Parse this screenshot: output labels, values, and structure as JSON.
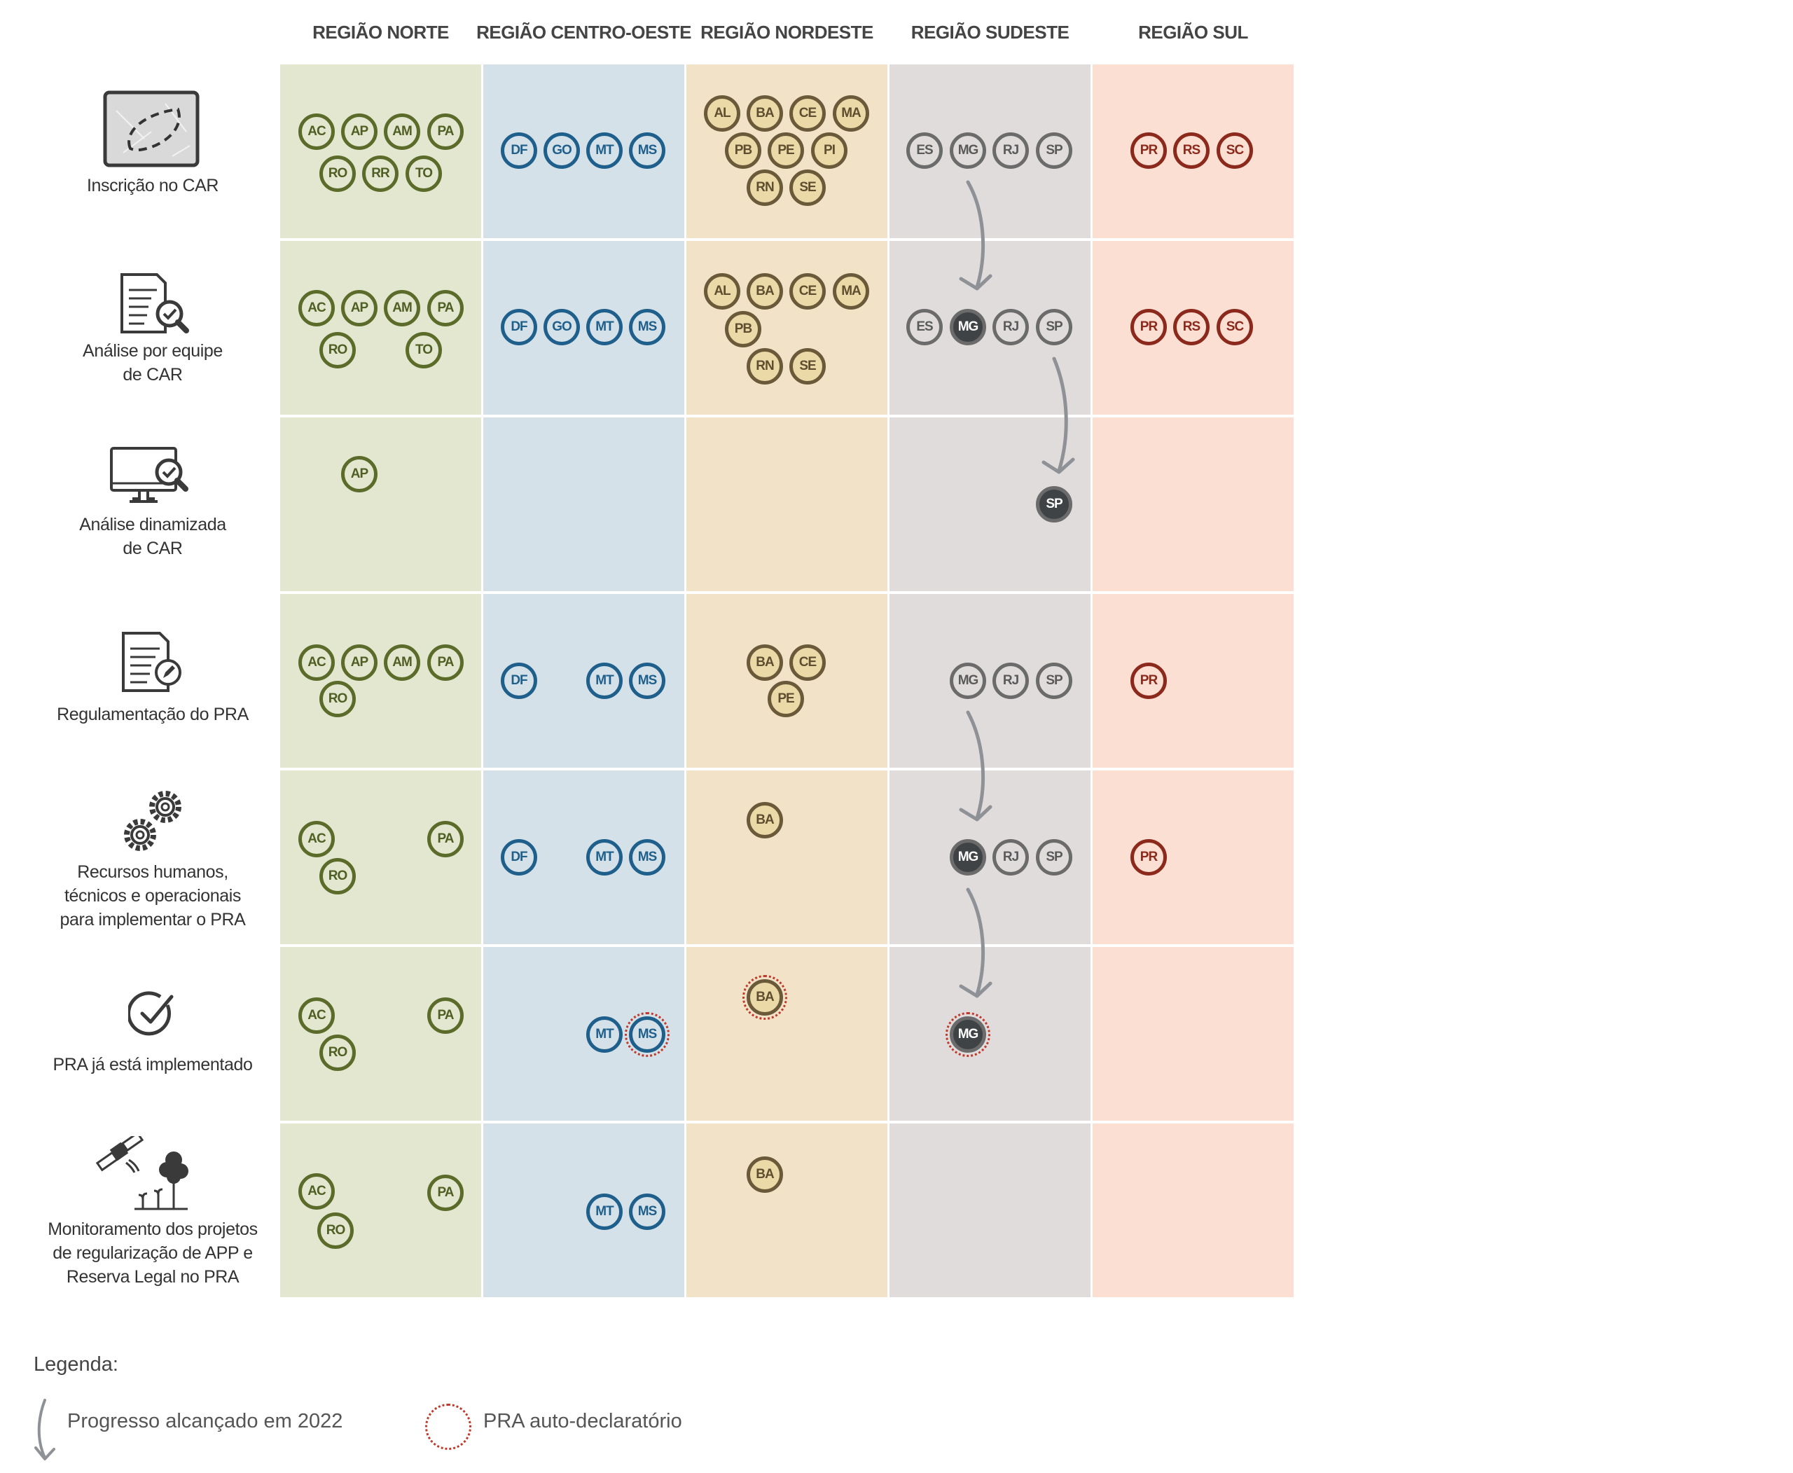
{
  "columns": [
    {
      "title": "REGIÃO NORTE",
      "fill": "#e4e7cf",
      "stroke": "#5a6b2a",
      "text": "#4f5f24",
      "badge_fill": "#e4e7cf"
    },
    {
      "title": "REGIÃO CENTRO-OESTE",
      "fill": "#d5e1e9",
      "stroke": "#1f5f8b",
      "text": "#1f5f8b",
      "badge_fill": "#d5e1e9"
    },
    {
      "title": "REGIÃO NORDESTE",
      "fill": "#f2e3c8",
      "stroke": "#6b5a3a",
      "text": "#5e4e2f",
      "badge_fill": "#ecd9a8"
    },
    {
      "title": "REGIÃO SUDESTE",
      "fill": "#e0dcdc",
      "stroke": "#6b6b6b",
      "text": "#5a5a5a",
      "badge_fill": "#e0dcdc",
      "dark_fill": "#404346"
    },
    {
      "title": "REGIÃO SUL",
      "fill": "#fbdfd2",
      "stroke": "#8b2a1c",
      "text": "#8b2a1c",
      "badge_fill": "#fbdfd2"
    }
  ],
  "rows": [
    {
      "label": "Inscrição no CAR",
      "icon": "map-outline-icon"
    },
    {
      "label": "Análise por equipe\nde CAR",
      "icon": "document-check-icon"
    },
    {
      "label": "Análise dinamizada\nde CAR",
      "icon": "monitor-check-icon"
    },
    {
      "label": "Regulamentação do PRA",
      "icon": "document-pencil-icon"
    },
    {
      "label": "Recursos humanos,\ntécnicos e operacionais\npara implementar o PRA",
      "icon": "gears-icon"
    },
    {
      "label": "PRA já está implementado",
      "icon": "checkmark-circle-icon"
    },
    {
      "label": "Monitoramento dos projetos\nde regularização de APP e\nReserva Legal no PRA",
      "icon": "satellite-tree-icon"
    }
  ],
  "states": [
    {
      "row": 0,
      "col": 0,
      "items": [
        "AC",
        "AP",
        "AM",
        "PA",
        "RO",
        "RR",
        "TO"
      ]
    },
    {
      "row": 0,
      "col": 1,
      "items": [
        "DF",
        "GO",
        "MT",
        "MS"
      ]
    },
    {
      "row": 0,
      "col": 2,
      "items": [
        "AL",
        "BA",
        "CE",
        "MA",
        "PB",
        "PE",
        "PI",
        "RN",
        "SE"
      ]
    },
    {
      "row": 0,
      "col": 3,
      "items": [
        "ES",
        "MG",
        "RJ",
        "SP"
      ]
    },
    {
      "row": 0,
      "col": 4,
      "items": [
        "PR",
        "RS",
        "SC"
      ]
    },
    {
      "row": 1,
      "col": 0,
      "items": [
        "AC",
        "AP",
        "AM",
        "PA",
        "RO",
        "TO"
      ]
    },
    {
      "row": 1,
      "col": 1,
      "items": [
        "DF",
        "GO",
        "MT",
        "MS"
      ]
    },
    {
      "row": 1,
      "col": 2,
      "items": [
        "AL",
        "BA",
        "CE",
        "MA",
        "PB",
        "RN",
        "SE"
      ]
    },
    {
      "row": 1,
      "col": 3,
      "items": [
        "ES",
        "MG",
        "RJ",
        "SP"
      ],
      "progress": [
        "MG"
      ]
    },
    {
      "row": 1,
      "col": 4,
      "items": [
        "PR",
        "RS",
        "SC"
      ]
    },
    {
      "row": 2,
      "col": 0,
      "items": [
        "AP"
      ]
    },
    {
      "row": 2,
      "col": 3,
      "items": [
        "SP"
      ],
      "progress": [
        "SP"
      ]
    },
    {
      "row": 3,
      "col": 0,
      "items": [
        "AC",
        "AP",
        "AM",
        "PA",
        "RO"
      ]
    },
    {
      "row": 3,
      "col": 1,
      "items": [
        "DF",
        "MT",
        "MS"
      ]
    },
    {
      "row": 3,
      "col": 2,
      "items": [
        "BA",
        "CE",
        "PE"
      ]
    },
    {
      "row": 3,
      "col": 3,
      "items": [
        "MG",
        "RJ",
        "SP"
      ]
    },
    {
      "row": 3,
      "col": 4,
      "items": [
        "PR"
      ]
    },
    {
      "row": 4,
      "col": 0,
      "items": [
        "AC",
        "PA",
        "RO"
      ]
    },
    {
      "row": 4,
      "col": 1,
      "items": [
        "DF",
        "MT",
        "MS"
      ]
    },
    {
      "row": 4,
      "col": 2,
      "items": [
        "BA"
      ]
    },
    {
      "row": 4,
      "col": 3,
      "items": [
        "MG",
        "RJ",
        "SP"
      ],
      "progress": [
        "MG"
      ]
    },
    {
      "row": 4,
      "col": 4,
      "items": [
        "PR"
      ]
    },
    {
      "row": 5,
      "col": 0,
      "items": [
        "AC",
        "PA",
        "RO"
      ]
    },
    {
      "row": 5,
      "col": 1,
      "items": [
        "MT",
        "MS"
      ],
      "self_declared": [
        "MS"
      ]
    },
    {
      "row": 5,
      "col": 2,
      "items": [
        "BA"
      ],
      "self_declared": [
        "BA"
      ]
    },
    {
      "row": 5,
      "col": 3,
      "items": [
        "MG"
      ],
      "progress": [
        "MG"
      ],
      "self_declared": [
        "MG"
      ]
    },
    {
      "row": 6,
      "col": 0,
      "items": [
        "AC",
        "PA",
        "RO"
      ]
    },
    {
      "row": 6,
      "col": 1,
      "items": [
        "MT",
        "MS"
      ]
    },
    {
      "row": 6,
      "col": 2,
      "items": [
        "BA"
      ]
    }
  ],
  "legend": {
    "title": "Legenda:",
    "progress_label": "Progresso alcançado em 2022",
    "self_declared_label": "PRA auto-declaratório"
  },
  "colors": {
    "arrow": "#8e9196",
    "self_declared_ring": "#c0392b",
    "label_text": "#333333",
    "header_text": "#444444"
  }
}
